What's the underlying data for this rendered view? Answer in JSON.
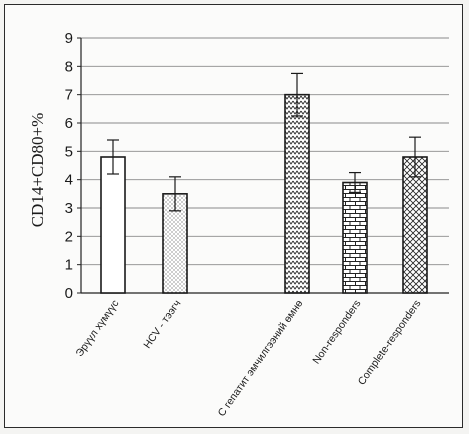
{
  "chart_data": {
    "type": "bar",
    "ylabel": "CD14+CD80+%",
    "ylim": [
      0,
      9
    ],
    "yticks": [
      "0",
      "1",
      "2",
      "3",
      "4",
      "5",
      "6",
      "7",
      "8",
      "9"
    ],
    "grid": true,
    "categories": [
      "Эрүүл хүмүүс",
      "HCV - тээгч",
      "С гепатит эмчилгээний өмнө",
      "Non-responders",
      "Complete-responders"
    ],
    "series": [
      {
        "values": [
          4.8,
          3.5,
          7.0,
          3.9,
          4.8
        ],
        "errors": [
          0.6,
          0.6,
          0.75,
          0.35,
          0.7
        ],
        "patterns": [
          "blank",
          "dots",
          "zigzag",
          "brick",
          "crosshatch"
        ]
      }
    ]
  }
}
